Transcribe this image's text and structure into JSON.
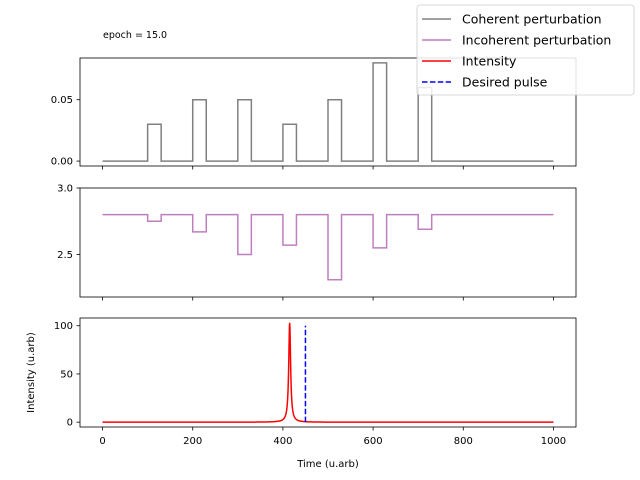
{
  "annotation": "epoch = 15.0",
  "legend": {
    "placement": "top-right",
    "entries": [
      {
        "label": "Coherent perturbation",
        "color": "#808080",
        "style": "solid"
      },
      {
        "label": "Incoherent perturbation",
        "color": "#bf7fbf",
        "style": "solid"
      },
      {
        "label": "Intensity",
        "color": "#ff0000",
        "style": "solid"
      },
      {
        "label": "Desired pulse",
        "color": "#0000ff",
        "style": "dashed"
      }
    ]
  },
  "chart_data": [
    {
      "type": "line",
      "xlim": [
        -50,
        1050
      ],
      "ylim": [
        -0.004,
        0.084
      ],
      "xticks": [
        0,
        200,
        400,
        600,
        800,
        1000
      ],
      "yticks": [
        0.0,
        0.05
      ],
      "ytick_labels": [
        "0.00",
        "0.05"
      ],
      "xlabel": "",
      "ylabel": "",
      "series": [
        {
          "name": "Coherent perturbation",
          "color": "#808080",
          "step": true,
          "x": [
            0,
            100,
            130,
            200,
            230,
            300,
            330,
            400,
            430,
            500,
            530,
            600,
            630,
            700,
            730,
            1000
          ],
          "y": [
            0,
            0.03,
            0,
            0.05,
            0,
            0.05,
            0,
            0.03,
            0,
            0.05,
            0,
            0.08,
            0,
            0.06,
            0,
            0
          ]
        }
      ]
    },
    {
      "type": "line",
      "xlim": [
        -50,
        1050
      ],
      "ylim": [
        2.18,
        3.0
      ],
      "xticks": [
        0,
        200,
        400,
        600,
        800,
        1000
      ],
      "yticks": [
        2.5,
        3.0
      ],
      "ytick_labels": [
        "2.5",
        "3.0"
      ],
      "xlabel": "",
      "ylabel": "",
      "series": [
        {
          "name": "Incoherent perturbation",
          "color": "#bf7fbf",
          "step": true,
          "x": [
            0,
            100,
            130,
            200,
            230,
            300,
            330,
            400,
            430,
            500,
            530,
            600,
            630,
            700,
            730,
            1000
          ],
          "y": [
            2.8,
            2.75,
            2.8,
            2.67,
            2.8,
            2.5,
            2.8,
            2.57,
            2.8,
            2.31,
            2.8,
            2.55,
            2.8,
            2.69,
            2.8,
            2.8
          ]
        }
      ]
    },
    {
      "type": "line",
      "xlim": [
        -50,
        1050
      ],
      "ylim": [
        -5,
        108
      ],
      "xticks": [
        0,
        200,
        400,
        600,
        800,
        1000
      ],
      "xtick_labels": [
        "0",
        "200",
        "400",
        "600",
        "800",
        "1000"
      ],
      "yticks": [
        0,
        50,
        100
      ],
      "ytick_labels": [
        "0",
        "50",
        "100"
      ],
      "xlabel": "Time (u.arb)",
      "ylabel": "Intensity (u.arb)",
      "series": [
        {
          "name": "Intensity",
          "color": "#ff0000",
          "peak_center": 415,
          "peak_height": 103,
          "peak_width": 2.5,
          "x_range": [
            0,
            1000
          ]
        },
        {
          "name": "Desired pulse",
          "color": "#0000ff",
          "dashed": true,
          "x": [
            450,
            450
          ],
          "y": [
            0,
            100
          ]
        }
      ]
    }
  ]
}
